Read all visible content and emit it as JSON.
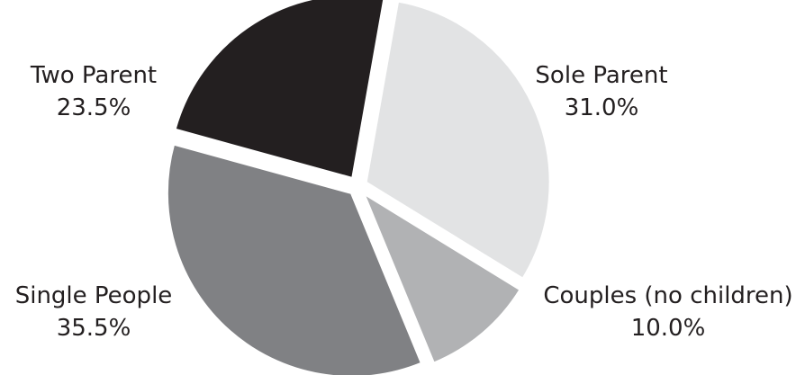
{
  "chart_data": {
    "type": "pie",
    "title": "",
    "slices": [
      {
        "label": "Sole Parent",
        "value": 31.0,
        "display": "31.0%",
        "color": "#e2e3e4"
      },
      {
        "label": "Couples (no children)",
        "value": 10.0,
        "display": "10.0%",
        "color": "#b1b2b4"
      },
      {
        "label": "Single People",
        "value": 35.5,
        "display": "35.5%",
        "color": "#808184"
      },
      {
        "label": "Two Parent",
        "value": 23.5,
        "display": "23.5%",
        "color": "#231f20"
      }
    ],
    "start_angle_deg": 10,
    "exploded": true,
    "legend": "none"
  }
}
